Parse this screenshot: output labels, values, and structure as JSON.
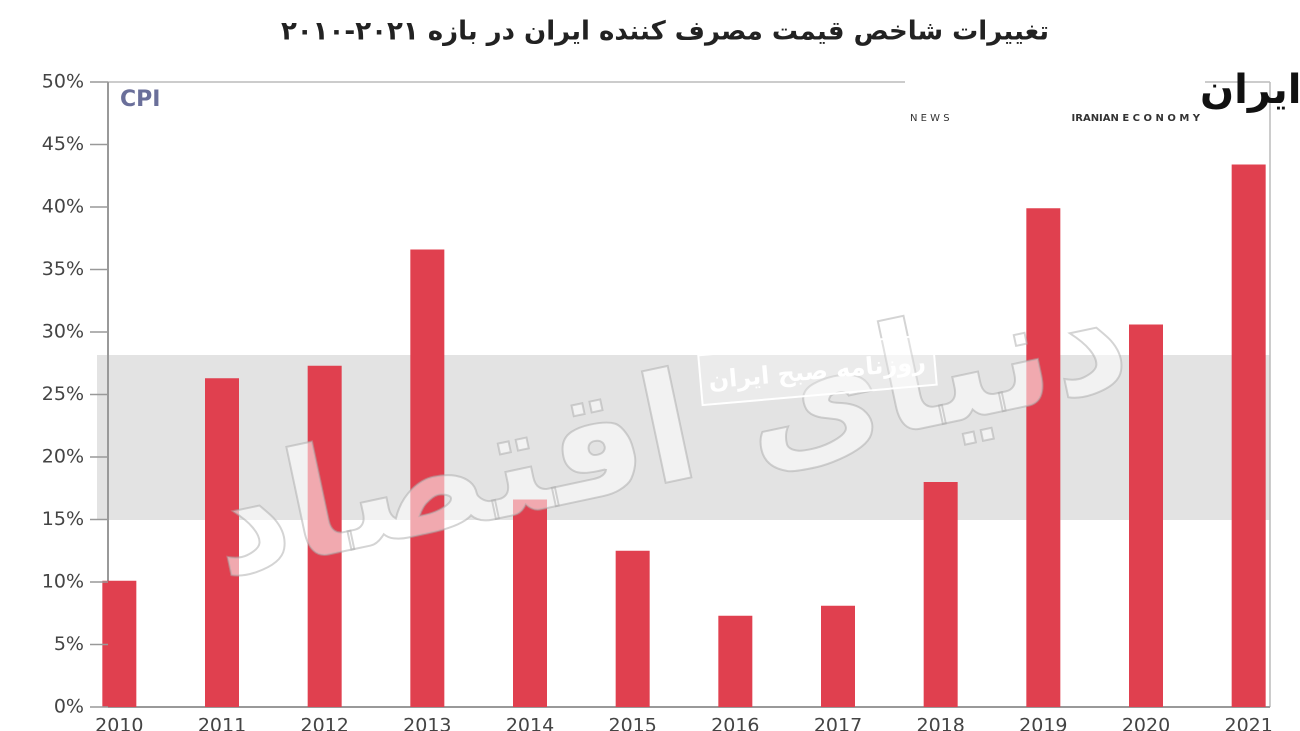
{
  "chart_data": {
    "type": "bar",
    "title": "تغییرات شاخص قیمت مصرف کننده ایران در بازه ۲۰۲۱-۲۰۱۰",
    "series_label": "CPI",
    "categories": [
      "2010",
      "2011",
      "2012",
      "2013",
      "2014",
      "2015",
      "2016",
      "2017",
      "2018",
      "2019",
      "2020",
      "2021"
    ],
    "values": [
      10.1,
      26.3,
      27.3,
      36.6,
      16.6,
      12.5,
      7.3,
      8.1,
      18.0,
      39.9,
      30.6,
      43.4
    ],
    "color": "#e0404f",
    "ylim": [
      0,
      50
    ],
    "yticks": [
      {
        "value": 0,
        "label": "0%"
      },
      {
        "value": 5,
        "label": "5%"
      },
      {
        "value": 10,
        "label": "10%"
      },
      {
        "value": 15,
        "label": "15%"
      },
      {
        "value": 20,
        "label": "20%"
      },
      {
        "value": 25,
        "label": "25%"
      },
      {
        "value": 30,
        "label": "30%"
      },
      {
        "value": 35,
        "label": "35%"
      },
      {
        "value": 40,
        "label": "40%"
      },
      {
        "value": 45,
        "label": "45%"
      },
      {
        "value": 50,
        "label": "50%"
      }
    ],
    "logo": {
      "title": "اقتصاد ایران",
      "left": "N E W S",
      "right": "IRANIAN E C O N O M Y"
    },
    "watermark": {
      "main": "دنیای اقتصاد",
      "band": "روزنامه صبح ایران"
    }
  }
}
